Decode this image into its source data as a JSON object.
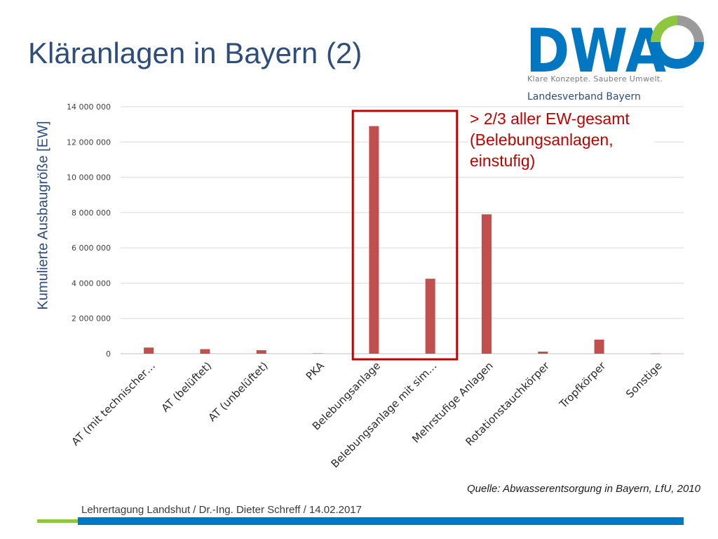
{
  "slide": {
    "title": "Kläranlagen in Bayern (2)",
    "annotation": "> 2/3 aller EW-gesamt (Belebungsanlagen, einstufig)",
    "source": "Quelle: Abwasserentsorgung in Bayern, LfU, 2010",
    "footer": "Lehrertagung Landshut / Dr.-Ing. Dieter Schreff / 14.02.2017"
  },
  "logo": {
    "name": "DWA",
    "tagline": "Klare Konzepte. Saubere Umwelt.",
    "region": "Landesverband Bayern"
  },
  "colors": {
    "bar": "#c0504d",
    "highlight": "#c00000",
    "title": "#2e4d7a",
    "logo_blue": "#0077c0",
    "logo_green": "#8dc63f",
    "logo_grey": "#9a9a9a"
  },
  "chart_data": {
    "type": "bar",
    "title": "",
    "xlabel": "",
    "ylabel": "Kumulierte Ausbaugröße [EW]",
    "categories": [
      "AT (mit technischer…",
      "AT (belüftet)",
      "AT (unbelüftet)",
      "PKA",
      "Belebungsanlage",
      "Belebungsanlage mit sim…",
      "Mehrstufige Anlagen",
      "Rotationstauchkörper",
      "Tropfkörper",
      "Sonstige"
    ],
    "values": [
      350000,
      260000,
      200000,
      20000,
      12900000,
      4250000,
      7900000,
      120000,
      800000,
      10000
    ],
    "ylim": [
      0,
      14000000
    ],
    "yticks": [
      0,
      2000000,
      4000000,
      6000000,
      8000000,
      10000000,
      12000000,
      14000000
    ],
    "ytick_labels": [
      "0",
      "2 000 000",
      "4 000 000",
      "6 000 000",
      "8 000 000",
      "10 000 000",
      "12 000 000",
      "14 000 000"
    ],
    "grid": true,
    "legend": "none",
    "highlighted_categories": [
      "Belebungsanlage",
      "Belebungsanlage mit sim…"
    ]
  }
}
